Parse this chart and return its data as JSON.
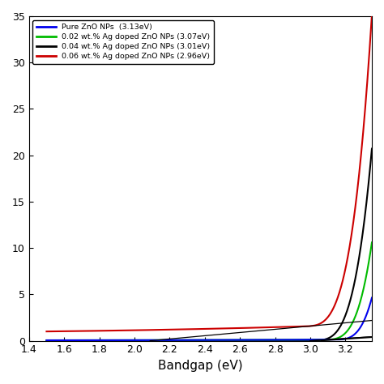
{
  "title": "",
  "xlabel": "Bandgap (eV)",
  "ylabel": "",
  "xlim": [
    1.4,
    3.35
  ],
  "ylim": [
    0,
    35
  ],
  "yticks": [
    0,
    5,
    10,
    15,
    20,
    25,
    30,
    35
  ],
  "xticks": [
    1.4,
    1.6,
    1.8,
    2.0,
    2.2,
    2.4,
    2.6,
    2.8,
    3.0,
    3.2
  ],
  "legend_entries": [
    {
      "label": "Pure ZnO NPs  (3.13eV)",
      "color": "#0000ee"
    },
    {
      "label": "0.02 wt.% Ag doped ZnO NPs (3.07eV)",
      "color": "#00bb00"
    },
    {
      "label": "0.04 wt.% Ag doped ZnO NPs (3.01eV)",
      "color": "#000000"
    },
    {
      "label": "0.06 wt.% Ag doped ZnO NPs (2.96eV)",
      "color": "#cc0000"
    }
  ],
  "bandgap_blue": 3.13,
  "bandgap_green": 3.07,
  "bandgap_black": 3.01,
  "bandgap_red": 2.96,
  "x_start": 1.5,
  "background_color": "#ffffff"
}
